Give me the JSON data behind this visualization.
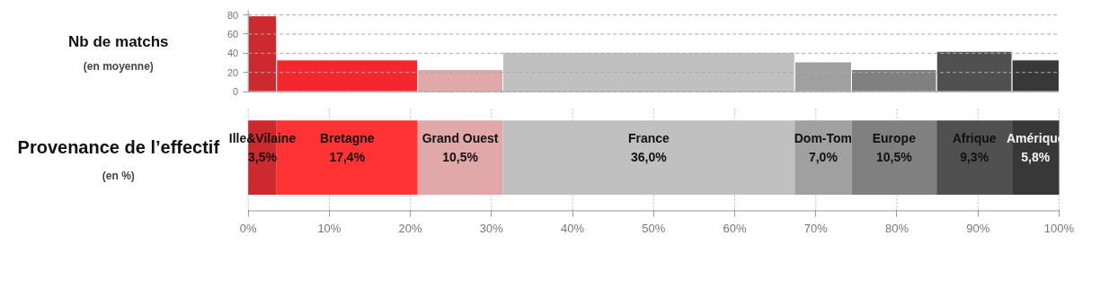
{
  "chart_data": [
    {
      "type": "bar",
      "title": "Nb de matchs",
      "annotations": [
        "(en moyenne)"
      ],
      "x": [
        1.75,
        12.2,
        26.15,
        49.4,
        70.9,
        79.65,
        89.55,
        97.1
      ],
      "xlim": [
        0,
        100
      ],
      "ylim": [
        0,
        85
      ],
      "yticks": [
        0,
        20,
        40,
        60,
        80
      ],
      "grid": "y",
      "tick_labels": "y",
      "values": [
        79,
        33,
        23,
        41,
        31,
        23,
        42,
        33
      ],
      "colors": [
        "#cc2a2e",
        "#f4282c",
        "#e0a8a8",
        "#c0c0c0",
        "#a0a0a0",
        "#808080",
        "#505050",
        "#383838"
      ]
    },
    {
      "type": "bar",
      "title": "Provenance de l’effectif",
      "annotations": [
        "(en %)"
      ],
      "orientation": "horizontal",
      "stacked": true,
      "categories": [
        null
      ],
      "xlim": [
        0,
        100
      ],
      "xticks": [
        {
          "value": 0,
          "label": "0%"
        },
        {
          "value": 10,
          "label": "10%"
        },
        {
          "value": 20,
          "label": "20%"
        },
        {
          "value": 30,
          "label": "30%"
        },
        {
          "value": 40,
          "label": "40%"
        },
        {
          "value": 50,
          "label": "50%"
        },
        {
          "value": 60,
          "label": "60%"
        },
        {
          "value": 70,
          "label": "70%"
        },
        {
          "value": 80,
          "label": "80%"
        },
        {
          "value": 90,
          "label": "90%"
        },
        {
          "value": 100,
          "label": "100%"
        }
      ],
      "grid": "x",
      "tick_labels": "x",
      "series": [
        {
          "name": "Ille&Vilaine",
          "color": "#cc2a2e",
          "values": [
            3.5
          ],
          "value_labels": [
            "3,5%"
          ]
        },
        {
          "name": "Bretagne",
          "color": "#ff3333",
          "values": [
            17.4
          ],
          "value_labels": [
            "17,4%"
          ]
        },
        {
          "name": "Grand Ouest",
          "color": "#e0a8a8",
          "values": [
            10.5
          ],
          "value_labels": [
            "10,5%"
          ]
        },
        {
          "name": "France",
          "color": "#c0c0c0",
          "values": [
            36.0
          ],
          "value_labels": [
            "36,0%"
          ]
        },
        {
          "name": "Dom-Tom",
          "color": "#a0a0a0",
          "values": [
            7.0
          ],
          "value_labels": [
            "7,0%"
          ]
        },
        {
          "name": "Europe",
          "color": "#808080",
          "values": [
            10.5
          ],
          "value_labels": [
            "10,5%"
          ]
        },
        {
          "name": "Afrique",
          "color": "#505050",
          "values": [
            9.3
          ],
          "value_labels": [
            "9,3%"
          ]
        },
        {
          "name": "Amérique",
          "color": "#383838",
          "values": [
            5.8
          ],
          "value_labels": [
            "5,8%"
          ]
        }
      ]
    }
  ]
}
